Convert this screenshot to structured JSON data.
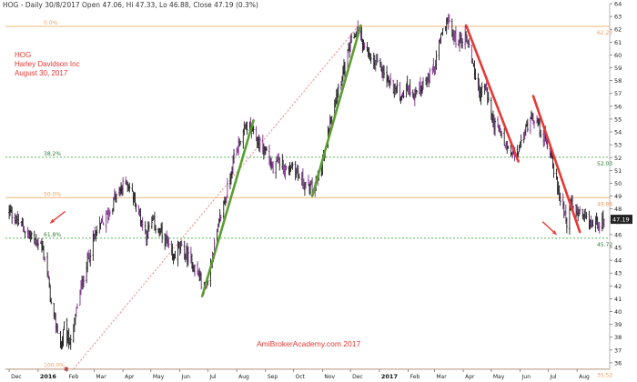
{
  "header": {
    "symbol": "HOG",
    "info": "HOG - Daily 30/8/2017 Open 47.06, Hi 47.33, Lo 46.88, Close 47.19 (0.3%)"
  },
  "stock_label": {
    "ticker": "HOG",
    "name": "Harley Davidson Inc",
    "date": "August 30, 2017"
  },
  "watermark": "AmiBrokerAcademy.com 2017",
  "colors": {
    "candle": "#1a1a1a",
    "volume_overlay": "#7b2a8c",
    "green_trend": "#5a9e2f",
    "red_trend": "#e53935",
    "fib_orange": "#f5b77a",
    "fib_green": "#5cb85c",
    "fib_dotted_red": "#f08080",
    "last_price_bg": "#222222"
  },
  "chart_data": {
    "type": "candlestick",
    "title": "HOG - Daily",
    "ylim": [
      35.5,
      64
    ],
    "y_ticks": [
      36,
      37,
      38,
      39,
      40,
      41,
      42,
      43,
      44,
      45,
      46,
      47,
      48,
      49,
      50,
      51,
      52,
      53,
      54,
      55,
      56,
      57,
      58,
      59,
      60,
      61,
      62,
      63,
      64
    ],
    "x_tick_labels": [
      {
        "label": "Dec",
        "bold": false
      },
      {
        "label": "2016",
        "bold": true
      },
      {
        "label": "Feb",
        "bold": false
      },
      {
        "label": "Mar",
        "bold": false
      },
      {
        "label": "Apr",
        "bold": false
      },
      {
        "label": "May",
        "bold": false
      },
      {
        "label": "Jun",
        "bold": false
      },
      {
        "label": "Jul",
        "bold": false
      },
      {
        "label": "Aug",
        "bold": false
      },
      {
        "label": "Sep",
        "bold": false
      },
      {
        "label": "Oct",
        "bold": false
      },
      {
        "label": "Nov",
        "bold": false
      },
      {
        "label": "Dec",
        "bold": false
      },
      {
        "label": "2017",
        "bold": true
      },
      {
        "label": "Feb",
        "bold": false
      },
      {
        "label": "Mar",
        "bold": false
      },
      {
        "label": "Apr",
        "bold": false
      },
      {
        "label": "May",
        "bold": false
      },
      {
        "label": "Jun",
        "bold": false
      },
      {
        "label": "Jul",
        "bold": false
      },
      {
        "label": "Aug",
        "bold": false
      }
    ],
    "price_path": [
      [
        "2015-12-01",
        47.8
      ],
      [
        "2015-12-08",
        47.2
      ],
      [
        "2015-12-15",
        46.6
      ],
      [
        "2015-12-22",
        46.0
      ],
      [
        "2016-01-04",
        45.2
      ],
      [
        "2016-01-08",
        44.2
      ],
      [
        "2016-01-12",
        42.5
      ],
      [
        "2016-01-15",
        40.5
      ],
      [
        "2016-01-19",
        39.2
      ],
      [
        "2016-01-22",
        38.5
      ],
      [
        "2016-01-26",
        37.2
      ],
      [
        "2016-01-29",
        38.8
      ],
      [
        "2016-02-03",
        37.6
      ],
      [
        "2016-02-08",
        38.6
      ],
      [
        "2016-02-12",
        40.5
      ],
      [
        "2016-02-18",
        42.5
      ],
      [
        "2016-02-25",
        44.5
      ],
      [
        "2016-03-02",
        46.0
      ],
      [
        "2016-03-09",
        46.8
      ],
      [
        "2016-03-16",
        47.5
      ],
      [
        "2016-03-23",
        48.8
      ],
      [
        "2016-03-30",
        49.5
      ],
      [
        "2016-04-05",
        50.2
      ],
      [
        "2016-04-12",
        49.0
      ],
      [
        "2016-04-19",
        47.5
      ],
      [
        "2016-04-26",
        46.0
      ],
      [
        "2016-05-03",
        47.0
      ],
      [
        "2016-05-10",
        46.2
      ],
      [
        "2016-05-17",
        45.5
      ],
      [
        "2016-05-24",
        44.0
      ],
      [
        "2016-05-31",
        45.0
      ],
      [
        "2016-06-07",
        44.5
      ],
      [
        "2016-06-14",
        43.8
      ],
      [
        "2016-06-21",
        42.8
      ],
      [
        "2016-06-27",
        41.8
      ],
      [
        "2016-07-01",
        42.5
      ],
      [
        "2016-07-08",
        45.0
      ],
      [
        "2016-07-15",
        47.5
      ],
      [
        "2016-07-22",
        49.5
      ],
      [
        "2016-07-29",
        52.0
      ],
      [
        "2016-08-05",
        53.5
      ],
      [
        "2016-08-12",
        54.5
      ],
      [
        "2016-08-19",
        53.8
      ],
      [
        "2016-08-26",
        53.0
      ],
      [
        "2016-09-02",
        52.5
      ],
      [
        "2016-09-09",
        51.0
      ],
      [
        "2016-09-16",
        51.8
      ],
      [
        "2016-09-23",
        51.0
      ],
      [
        "2016-09-30",
        51.5
      ],
      [
        "2016-10-07",
        50.5
      ],
      [
        "2016-10-14",
        49.8
      ],
      [
        "2016-10-21",
        49.5
      ],
      [
        "2016-10-28",
        50.5
      ],
      [
        "2016-11-04",
        52.5
      ],
      [
        "2016-11-11",
        55.5
      ],
      [
        "2016-11-18",
        57.5
      ],
      [
        "2016-11-25",
        59.0
      ],
      [
        "2016-12-02",
        61.0
      ],
      [
        "2016-12-09",
        62.0
      ],
      [
        "2016-12-16",
        60.5
      ],
      [
        "2016-12-23",
        59.5
      ],
      [
        "2017-01-03",
        59.0
      ],
      [
        "2017-01-10",
        58.0
      ],
      [
        "2017-01-17",
        57.5
      ],
      [
        "2017-01-24",
        56.8
      ],
      [
        "2017-01-31",
        57.5
      ],
      [
        "2017-02-07",
        57.0
      ],
      [
        "2017-02-14",
        57.5
      ],
      [
        "2017-02-21",
        58.0
      ],
      [
        "2017-02-28",
        58.8
      ],
      [
        "2017-03-07",
        61.0
      ],
      [
        "2017-03-14",
        62.8
      ],
      [
        "2017-03-21",
        61.5
      ],
      [
        "2017-03-28",
        61.0
      ],
      [
        "2017-04-04",
        61.5
      ],
      [
        "2017-04-11",
        59.5
      ],
      [
        "2017-04-18",
        57.0
      ],
      [
        "2017-04-25",
        57.5
      ],
      [
        "2017-05-02",
        55.0
      ],
      [
        "2017-05-09",
        54.0
      ],
      [
        "2017-05-16",
        53.0
      ],
      [
        "2017-05-23",
        52.2
      ],
      [
        "2017-05-30",
        52.5
      ],
      [
        "2017-06-06",
        54.0
      ],
      [
        "2017-06-13",
        55.5
      ],
      [
        "2017-06-20",
        54.5
      ],
      [
        "2017-06-27",
        53.5
      ],
      [
        "2017-07-04",
        52.5
      ],
      [
        "2017-07-11",
        49.5
      ],
      [
        "2017-07-18",
        48.0
      ],
      [
        "2017-07-21",
        47.0
      ],
      [
        "2017-07-25",
        48.5
      ],
      [
        "2017-07-28",
        47.8
      ],
      [
        "2017-08-04",
        47.5
      ],
      [
        "2017-08-11",
        47.0
      ],
      [
        "2017-08-18",
        46.8
      ],
      [
        "2017-08-25",
        47.0
      ],
      [
        "2017-08-30",
        47.19
      ]
    ],
    "fib_levels": [
      {
        "label": "0.0%",
        "value": 62.23,
        "value_label": "62.23",
        "style": "orange"
      },
      {
        "label": "38.2%",
        "value": 52.03,
        "value_label": "52.03",
        "style": "green"
      },
      {
        "label": "50.0%",
        "value": 48.88,
        "value_label": "48.88",
        "style": "orange"
      },
      {
        "label": "61.8%",
        "value": 45.72,
        "value_label": "45.72",
        "style": "green"
      },
      {
        "label": "100.0%",
        "value": 35.52,
        "value_label": "35.52",
        "style": "orange"
      }
    ],
    "last_price": 47.19,
    "last_price_label": "47.19",
    "fib_swing": {
      "from_date": "2016-02-08",
      "from_value": 35.52,
      "to_date": "2016-12-09",
      "to_value": 62.23
    },
    "trend_lines": [
      {
        "color": "green",
        "from_date": "2016-06-25",
        "from_value": 41.2,
        "to_date": "2016-08-19",
        "to_value": 54.9
      },
      {
        "color": "green",
        "from_date": "2016-10-21",
        "from_value": 49.0,
        "to_date": "2016-12-12",
        "to_value": 62.3
      },
      {
        "color": "red",
        "from_date": "2017-04-04",
        "from_value": 62.3,
        "to_date": "2017-05-30",
        "to_value": 51.7
      },
      {
        "color": "red",
        "from_date": "2017-06-15",
        "from_value": 56.8,
        "to_date": "2017-08-04",
        "to_value": 46.2
      }
    ],
    "arrows": [
      {
        "from_date": "2016-01-30",
        "from_value": 47.8,
        "to_date": "2016-01-14",
        "to_value": 46.9
      },
      {
        "from_date": "2017-06-25",
        "from_value": 47.0,
        "to_date": "2017-07-10",
        "to_value": 46.0
      }
    ],
    "grid": false
  }
}
